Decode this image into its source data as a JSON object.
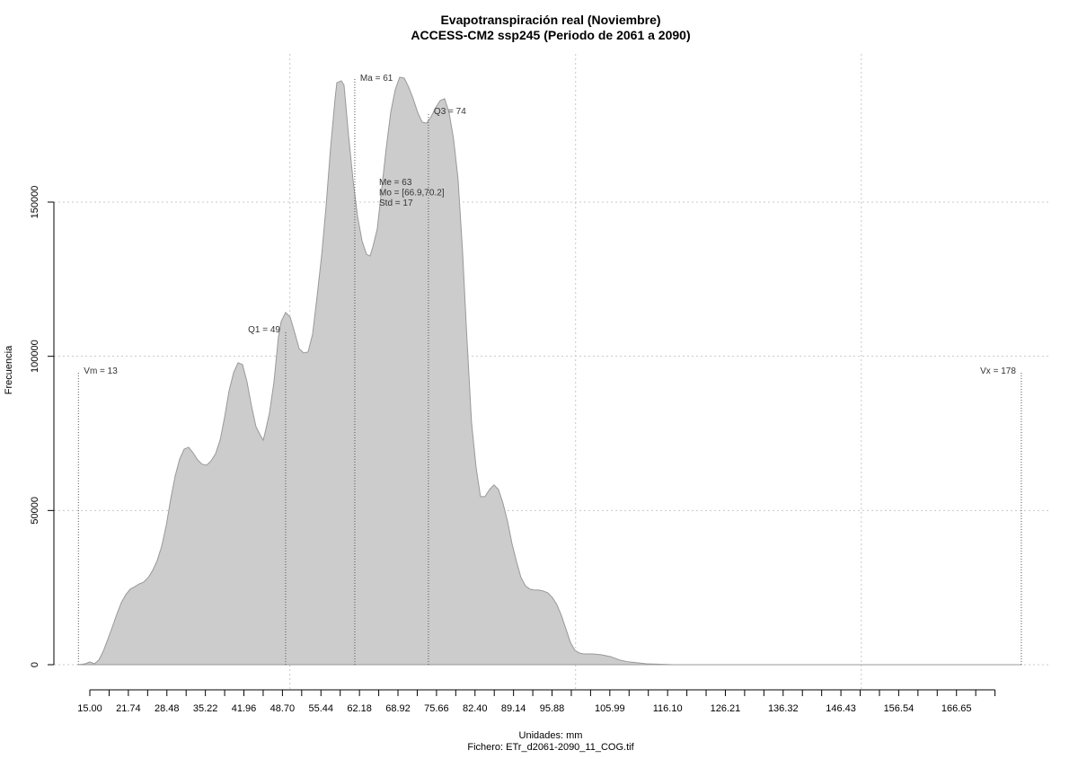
{
  "chart_data": {
    "type": "area",
    "title": "Evapotranspiración real (Noviembre)",
    "subtitle": "ACCESS-CM2 ssp245 (Periodo de 2061 a 2090)",
    "xlabel": "Unidades: mm",
    "caption": "Fichero: ETr_d2061-2090_11_COG.tif",
    "ylabel": "Frecuencia",
    "color": "#cccccc",
    "line_color": "#999999",
    "x": [
      13.11,
      14.21,
      15.0,
      15.79,
      16.57,
      17.36,
      18.14,
      18.93,
      19.71,
      20.5,
      21.29,
      22.07,
      22.86,
      23.64,
      24.43,
      25.22,
      26.0,
      26.79,
      27.57,
      28.36,
      29.14,
      29.93,
      30.72,
      31.5,
      32.29,
      33.07,
      33.86,
      34.65,
      35.43,
      36.22,
      37.0,
      37.79,
      38.57,
      39.36,
      40.15,
      40.93,
      41.72,
      42.5,
      43.29,
      44.07,
      44.86,
      45.33,
      45.65,
      46.43,
      47.22,
      48.0,
      48.48,
      49.26,
      50.05,
      50.83,
      51.62,
      52.4,
      53.19,
      53.98,
      54.76,
      55.55,
      56.33,
      57.12,
      57.91,
      58.22,
      59.0,
      59.48,
      60.26,
      61.05,
      61.83,
      62.62,
      63.41,
      64.03,
      64.51,
      65.29,
      66.08,
      66.86,
      67.65,
      68.43,
      69.22,
      70.01,
      70.79,
      71.58,
      72.36,
      73.15,
      73.94,
      74.72,
      75.51,
      76.29,
      77.08,
      77.86,
      78.65,
      79.44,
      80.22,
      81.01,
      81.79,
      82.58,
      83.36,
      84.15,
      84.94,
      85.72,
      86.51,
      87.29,
      88.08,
      88.87,
      89.65,
      90.44,
      91.22,
      92.01,
      92.79,
      93.58,
      94.36,
      95.15,
      95.94,
      96.72,
      97.51,
      98.29,
      99.08,
      99.86,
      100.65,
      101.44,
      103.01,
      104.58,
      106.15,
      107.72,
      109.3,
      112.44,
      117.15,
      178.0
    ],
    "values": [
      0,
      300,
      900,
      300,
      1500,
      4400,
      8200,
      12200,
      16300,
      20100,
      22700,
      24500,
      25300,
      26200,
      26800,
      28300,
      30600,
      33800,
      38400,
      45100,
      53600,
      61200,
      66700,
      69900,
      70500,
      68700,
      66400,
      65000,
      64700,
      66100,
      68400,
      72800,
      80100,
      88800,
      94700,
      97900,
      97300,
      91700,
      83900,
      77200,
      74300,
      72800,
      75100,
      81600,
      91700,
      106300,
      111300,
      114200,
      112700,
      107800,
      102500,
      101100,
      101400,
      107200,
      119400,
      132500,
      148500,
      167500,
      183500,
      188700,
      189300,
      187900,
      171800,
      157300,
      145600,
      137500,
      133100,
      132500,
      135400,
      141300,
      154400,
      167500,
      179100,
      186400,
      190500,
      190200,
      187300,
      183500,
      179100,
      175900,
      175600,
      177700,
      180600,
      182900,
      183500,
      179100,
      170400,
      157300,
      134000,
      104900,
      78600,
      64100,
      54500,
      54500,
      56800,
      58300,
      56800,
      52400,
      46600,
      39300,
      33500,
      28300,
      25600,
      24500,
      24200,
      24200,
      23900,
      23300,
      21800,
      19500,
      16000,
      11700,
      7300,
      4700,
      3800,
      3500,
      3500,
      3200,
      2600,
      1500,
      900,
      300,
      0,
      0
    ],
    "xlim": [
      8.71,
      183.2
    ],
    "ylim": [
      -8150,
      198050
    ],
    "xticks": [
      {
        "value": 15,
        "label": "15.00"
      },
      21.74,
      28.48,
      35.22,
      41.96,
      {
        "value": 48.7,
        "label": "48.70"
      },
      55.44,
      62.18,
      68.92,
      75.66,
      {
        "value": 82.4,
        "label": "82.40"
      },
      89.14,
      95.88,
      105.99,
      {
        "value": 116.1,
        "label": "116.10"
      },
      126.21,
      136.32,
      146.43,
      156.54,
      166.65
    ],
    "xminorticks": [
      18.37,
      25.11,
      31.85,
      38.59,
      45.33,
      52.07,
      58.81,
      65.55,
      72.29,
      79.03,
      85.77,
      92.51,
      99.25,
      102.62,
      109.36,
      112.73,
      119.47,
      122.84,
      129.58,
      132.95,
      139.69,
      143.06,
      149.8,
      153.17,
      159.91,
      163.28,
      170.02,
      173.39
    ],
    "yticks": [
      0,
      50000,
      100000,
      150000
    ],
    "xgrid": [
      50,
      100,
      150
    ],
    "grid": true,
    "markers": [
      {
        "label": "Vm = 13",
        "x": 13,
        "y": 95000
      },
      {
        "label": "Q1 = 49",
        "x": 49.26,
        "y": 108400
      },
      {
        "label": "Ma = 61",
        "x": 61.36,
        "y": 189900
      },
      {
        "label": "Q3 = 74",
        "x": 74.25,
        "y": 179100
      },
      {
        "label": "Vx = 178",
        "x": 178,
        "y": 95000
      }
    ],
    "stats": [
      "Me = 63",
      "Mo = [66.9,70.2]",
      "Std = 17"
    ]
  }
}
